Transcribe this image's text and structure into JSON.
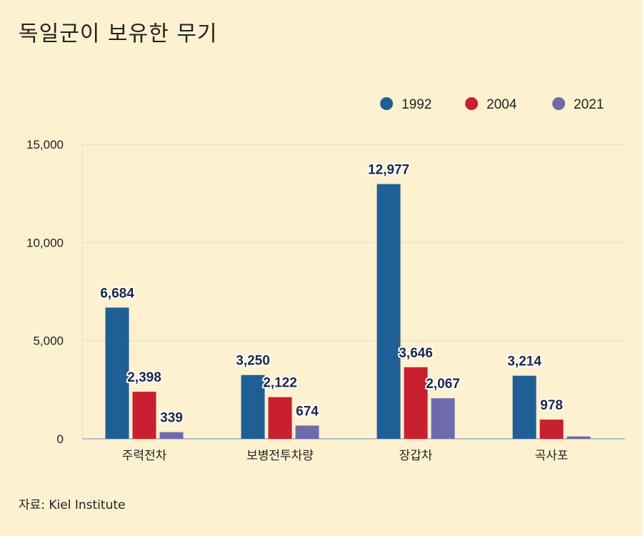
{
  "title": "독일군이 보유한 무기",
  "source": "자료: Kiel Institute",
  "chart_data": {
    "type": "bar",
    "title": "독일군이 보유한 무기",
    "categories": [
      "주력전차",
      "보병전투차량",
      "장갑차",
      "곡사포"
    ],
    "series": [
      {
        "name": "1992",
        "color": "#1f5f96",
        "values": [
          6684,
          3250,
          12977,
          3214
        ]
      },
      {
        "name": "2004",
        "color": "#c8202f",
        "values": [
          2398,
          2122,
          3646,
          978
        ]
      },
      {
        "name": "2021",
        "color": "#6f6aab",
        "values": [
          339,
          674,
          2067,
          121
        ]
      }
    ],
    "data_labels": [
      [
        "6,684",
        "3,250",
        "12,977",
        "3,214"
      ],
      [
        "2,398",
        "2,122",
        "3,646",
        "978"
      ],
      [
        "339",
        "674",
        "2,067",
        ""
      ]
    ],
    "yticks": [
      0,
      5000,
      10000,
      15000
    ],
    "ytick_labels": [
      "0",
      "5,000",
      "10,000",
      "15,000"
    ],
    "ylim": [
      0,
      15000
    ],
    "grid": true,
    "legend": "top-right",
    "xlabel": "",
    "ylabel": ""
  }
}
